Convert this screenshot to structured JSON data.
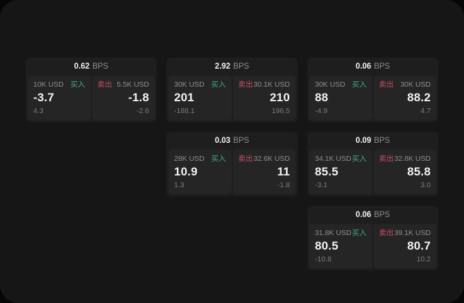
{
  "colors": {
    "page_bg": "#060606",
    "window_bg": "#161616",
    "card_bg": "#1e1e1e",
    "panel_bg": "#252525",
    "buy_green": "#3fae7e",
    "sell_red": "#c94f63"
  },
  "labels": {
    "bps_unit": "BPS",
    "buy": "买入",
    "sell": "卖出"
  },
  "cards": [
    {
      "bps": "0.62",
      "buy": {
        "amount": "10K USD",
        "value": "-3.7",
        "delta": "4.3"
      },
      "sell": {
        "amount": "5.5K USD",
        "value": "-1.8",
        "delta": "-2.6"
      }
    },
    {
      "bps": "2.92",
      "buy": {
        "amount": "30K USD",
        "value": "201",
        "delta": "-188.1"
      },
      "sell": {
        "amount": "30.1K USD",
        "value": "210",
        "delta": "196.5"
      }
    },
    {
      "bps": "0.06",
      "buy": {
        "amount": "30K USD",
        "value": "88",
        "delta": "-4.9"
      },
      "sell": {
        "amount": "30K USD",
        "value": "88.2",
        "delta": "4.7"
      }
    },
    {
      "bps": "0.03",
      "buy": {
        "amount": "28K USD",
        "value": "10.9",
        "delta": "1.3"
      },
      "sell": {
        "amount": "32.6K USD",
        "value": "11",
        "delta": "-1.8"
      }
    },
    {
      "bps": "0.09",
      "buy": {
        "amount": "34.1K USD",
        "value": "85.5",
        "delta": "-3.1"
      },
      "sell": {
        "amount": "32.8K USD",
        "value": "85.8",
        "delta": "3.0"
      }
    },
    {
      "bps": "0.06",
      "buy": {
        "amount": "31.8K USD",
        "value": "80.5",
        "delta": "-10.8"
      },
      "sell": {
        "amount": "39.1K USD",
        "value": "80.7",
        "delta": "10.2"
      }
    }
  ]
}
